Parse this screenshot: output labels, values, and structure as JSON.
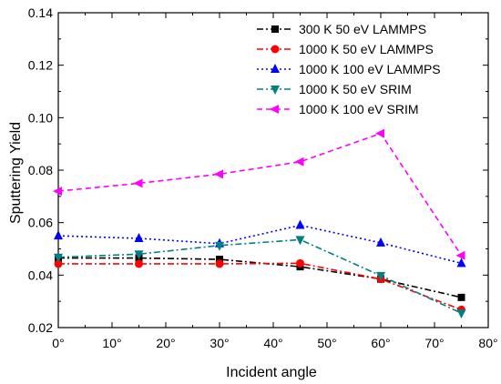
{
  "chart_data": {
    "type": "line",
    "title": "",
    "xlabel": "Incident angle",
    "ylabel": "Sputtering Yield",
    "x_tick_labels": [
      "0°",
      "10°",
      "20°",
      "30°",
      "40°",
      "50°",
      "60°",
      "70°",
      "80°"
    ],
    "x_ticks": [
      0,
      10,
      20,
      30,
      40,
      50,
      60,
      70,
      80
    ],
    "y_tick_labels": [
      "0.02",
      "0.04",
      "0.06",
      "0.08",
      "0.10",
      "0.12",
      "0.14"
    ],
    "y_ticks": [
      0.02,
      0.04,
      0.06,
      0.08,
      0.1,
      0.12,
      0.14
    ],
    "xlim": [
      0,
      80
    ],
    "ylim": [
      0.02,
      0.14
    ],
    "grid": false,
    "legend_position": "top-right",
    "x": [
      0,
      15,
      30,
      45,
      60,
      75
    ],
    "series": [
      {
        "name": "300 K 50 eV LAMMPS",
        "color": "#000000",
        "marker": "square",
        "line_style": "dash-dot",
        "values": [
          0.0465,
          0.0465,
          0.046,
          0.0432,
          0.0385,
          0.0315
        ]
      },
      {
        "name": "1000 K 50 eV LAMMPS",
        "color": "#ff0000",
        "marker": "circle",
        "line_style": "dash-dot",
        "values": [
          0.0443,
          0.0443,
          0.0443,
          0.0445,
          0.0385,
          0.0268
        ]
      },
      {
        "name": "1000 K 100 eV LAMMPS",
        "color": "#0000ff",
        "marker": "triangle-up",
        "line_style": "dotted",
        "values": [
          0.055,
          0.054,
          0.052,
          0.059,
          0.0523,
          0.0445
        ]
      },
      {
        "name": "1000 K 50 eV SRIM",
        "color": "#008080",
        "marker": "triangle-down",
        "line_style": "dash-dot",
        "values": [
          0.0468,
          0.048,
          0.0513,
          0.0535,
          0.0398,
          0.0255
        ]
      },
      {
        "name": "1000 K 100 eV SRIM",
        "color": "#ff00ff",
        "marker": "triangle-left",
        "line_style": "dashed",
        "values": [
          0.072,
          0.075,
          0.0785,
          0.0832,
          0.094,
          0.0475
        ]
      }
    ]
  }
}
